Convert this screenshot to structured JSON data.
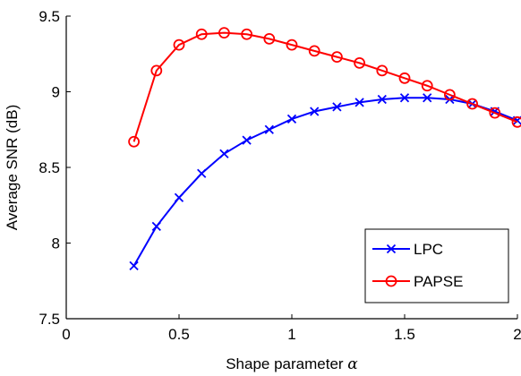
{
  "chart_data": {
    "type": "line",
    "xlabel": "Shape parameter ",
    "xlabel_symbol": "α",
    "ylabel": "Average SNR (dB)",
    "xlim": [
      0,
      2
    ],
    "ylim": [
      7.5,
      9.5
    ],
    "xticks": [
      "0",
      "0.5",
      "1",
      "1.5",
      "2"
    ],
    "yticks": [
      "7.5",
      "8",
      "8.5",
      "9",
      "9.5"
    ],
    "grid": false,
    "legend_position": "bottom-right",
    "x": [
      0.3,
      0.4,
      0.5,
      0.6,
      0.7,
      0.8,
      0.9,
      1.0,
      1.1,
      1.2,
      1.3,
      1.4,
      1.5,
      1.6,
      1.7,
      1.8,
      1.9,
      2.0
    ],
    "series": [
      {
        "name": "LPC",
        "color": "#0000ff",
        "marker": "x",
        "values": [
          7.85,
          8.11,
          8.3,
          8.46,
          8.59,
          8.68,
          8.75,
          8.82,
          8.87,
          8.9,
          8.93,
          8.95,
          8.96,
          8.96,
          8.95,
          8.92,
          8.87,
          8.81
        ]
      },
      {
        "name": "PAPSE",
        "color": "#ff0000",
        "marker": "o",
        "values": [
          8.67,
          9.14,
          9.31,
          9.38,
          9.39,
          9.38,
          9.35,
          9.31,
          9.27,
          9.23,
          9.19,
          9.14,
          9.09,
          9.04,
          8.98,
          8.92,
          8.86,
          8.8
        ]
      }
    ]
  }
}
